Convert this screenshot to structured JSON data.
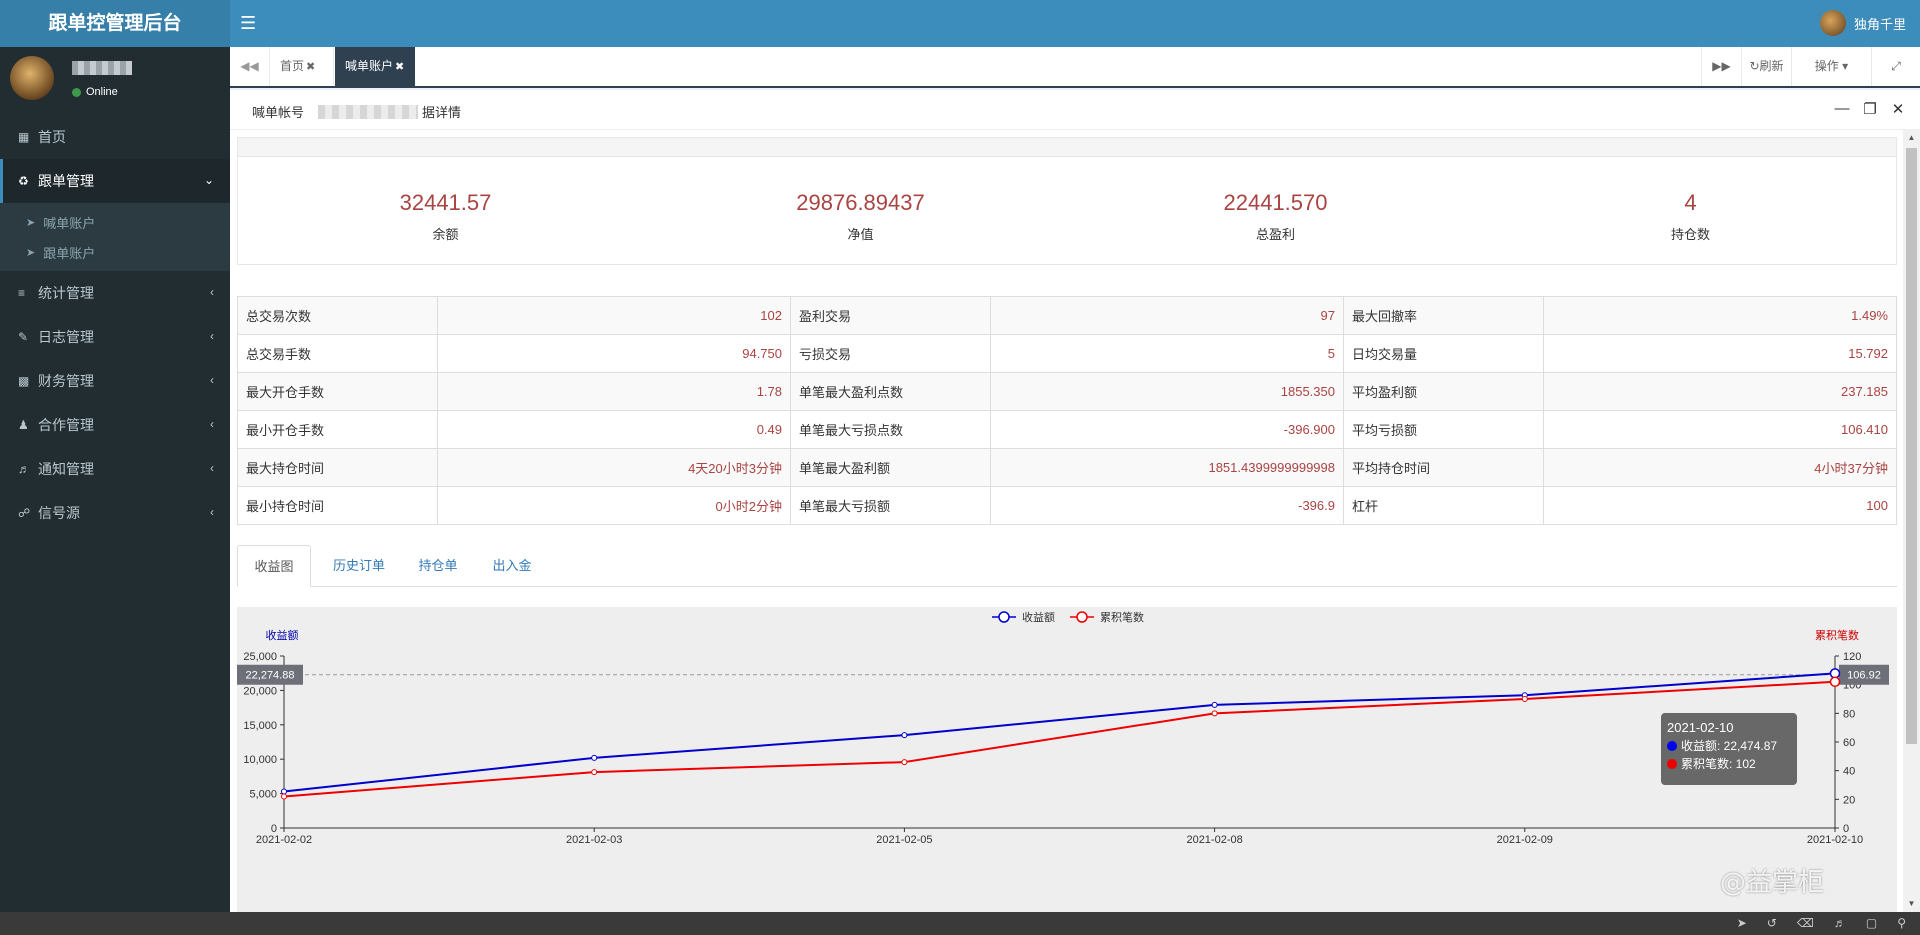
{
  "header": {
    "logo": "跟单控管理后台",
    "menu_icon": "menu-icon",
    "username": "独角千里"
  },
  "sidebar": {
    "status": "Online",
    "items": [
      {
        "label": "首页",
        "icon": "windows-icon"
      },
      {
        "label": "跟单管理",
        "icon": "recycle-icon",
        "active": true,
        "children": [
          {
            "label": "喊单账户"
          },
          {
            "label": "跟单账户"
          }
        ]
      },
      {
        "label": "统计管理",
        "icon": "sliders-icon"
      },
      {
        "label": "日志管理",
        "icon": "edit-icon"
      },
      {
        "label": "财务管理",
        "icon": "money-icon"
      },
      {
        "label": "合作管理",
        "icon": "users-icon"
      },
      {
        "label": "通知管理",
        "icon": "volume-icon"
      },
      {
        "label": "信号源",
        "icon": "share-icon"
      }
    ]
  },
  "tabs": {
    "items": [
      "首页",
      "喊单账户"
    ],
    "refresh": "刷新",
    "actions": "操作"
  },
  "page": {
    "title_prefix": "喊单帐号",
    "title_suffix": "据详情"
  },
  "summary": [
    {
      "value": "32441.57",
      "label": "余额"
    },
    {
      "value": "29876.89437",
      "label": "净值"
    },
    {
      "value": "22441.570",
      "label": "总盈利"
    },
    {
      "value": "4",
      "label": "持仓数"
    }
  ],
  "stats": [
    [
      {
        "k": "总交易次数",
        "v": "102"
      },
      {
        "k": "盈利交易",
        "v": "97"
      },
      {
        "k": "最大回撤率",
        "v": "1.49%"
      }
    ],
    [
      {
        "k": "总交易手数",
        "v": "94.750"
      },
      {
        "k": "亏损交易",
        "v": "5"
      },
      {
        "k": "日均交易量",
        "v": "15.792"
      }
    ],
    [
      {
        "k": "最大开仓手数",
        "v": "1.78"
      },
      {
        "k": "单笔最大盈利点数",
        "v": "1855.350"
      },
      {
        "k": "平均盈利额",
        "v": "237.185"
      }
    ],
    [
      {
        "k": "最小开仓手数",
        "v": "0.49"
      },
      {
        "k": "单笔最大亏损点数",
        "v": "-396.900"
      },
      {
        "k": "平均亏损额",
        "v": "106.410"
      }
    ],
    [
      {
        "k": "最大持仓时间",
        "v": "4天20小时3分钟"
      },
      {
        "k": "单笔最大盈利额",
        "v": "1851.4399999999998"
      },
      {
        "k": "平均持仓时间",
        "v": "4小时37分钟"
      }
    ],
    [
      {
        "k": "最小持仓时间",
        "v": "0小时2分钟"
      },
      {
        "k": "单笔最大亏损额",
        "v": "-396.9"
      },
      {
        "k": "杠杆",
        "v": "100"
      }
    ]
  ],
  "detail_tabs": [
    "收益图",
    "历史订单",
    "持仓单",
    "出入金"
  ],
  "chart_data": {
    "type": "line",
    "x": [
      "2021-02-02",
      "2021-02-03",
      "2021-02-05",
      "2021-02-08",
      "2021-02-09",
      "2021-02-10"
    ],
    "series": [
      {
        "name": "收益额",
        "axis": "left",
        "color": "#0000cc",
        "values": [
          5300,
          10200,
          13500,
          17900,
          19300,
          22474.87
        ]
      },
      {
        "name": "累积笔数",
        "axis": "right",
        "color": "#ee0000",
        "values": [
          22,
          39,
          46,
          80,
          90,
          102
        ]
      }
    ],
    "ylabel_left": "收益额",
    "ylabel_right": "累积笔数",
    "ylim_left": [
      0,
      25000
    ],
    "yticks_left": [
      "0",
      "5,000",
      "10,000",
      "15,000",
      "20,000",
      "25,000"
    ],
    "ylim_right": [
      0,
      120
    ],
    "yticks_right": [
      "0",
      "20",
      "40",
      "60",
      "80",
      "100",
      "120"
    ],
    "legend": "top-center",
    "pointer_left": "22,274.88",
    "pointer_right": "106.92",
    "tooltip": {
      "date": "2021-02-10",
      "row1": "收益额: 22,474.87",
      "row2": "累积笔数: 102"
    }
  },
  "watermark": "@益掌柜"
}
